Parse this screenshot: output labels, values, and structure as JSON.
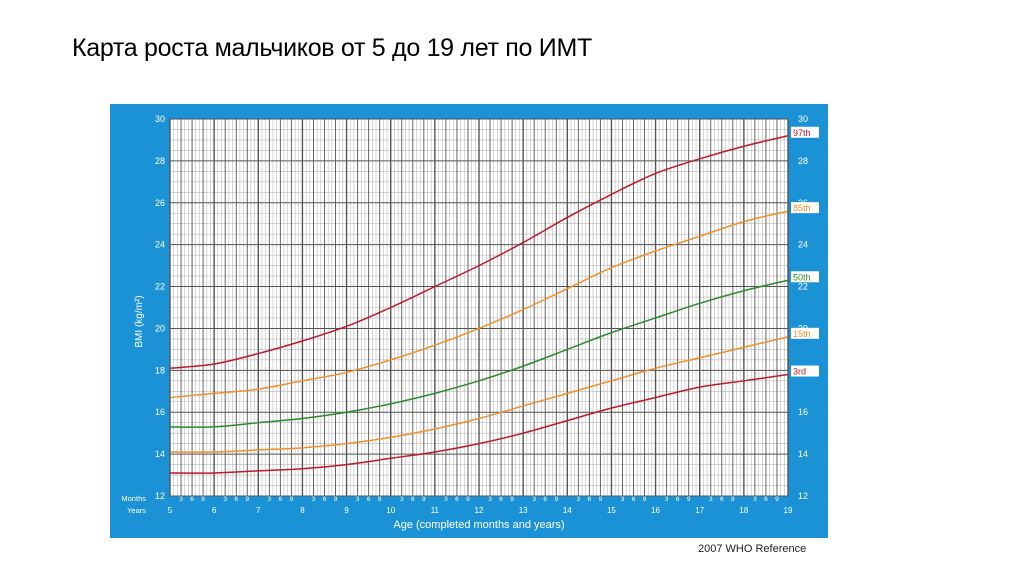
{
  "slide": {
    "title": "Карта роста мальчиков от 5 до 19 лет по ИМТ",
    "footer": "2007  WHO Reference"
  },
  "colors": {
    "frame": "#1b92d6",
    "plot_bg": "#ffffff",
    "grid_minor": "#b9b9b9",
    "grid_major": "#555555",
    "red": "#c0182c",
    "orange": "#f0902a",
    "green": "#2d8a2d"
  },
  "chart_data": {
    "type": "line",
    "title": "",
    "xlabel": "Age (completed months and years)",
    "ylabel": "BMI (kg/m²)",
    "xlim": [
      5,
      19
    ],
    "ylim": [
      12,
      30
    ],
    "y_ticks": [
      12,
      14,
      16,
      18,
      20,
      22,
      24,
      26,
      28,
      30
    ],
    "x_year_ticks": [
      5,
      6,
      7,
      8,
      9,
      10,
      11,
      12,
      13,
      14,
      15,
      16,
      17,
      18,
      19
    ],
    "month_ticks": [
      "3",
      "6",
      "9"
    ],
    "row_labels": {
      "months": "Months",
      "years": "Years"
    },
    "grid": true,
    "x": [
      5,
      6,
      7,
      8,
      9,
      10,
      11,
      12,
      13,
      14,
      15,
      16,
      17,
      18,
      19
    ],
    "series": [
      {
        "name": "97th",
        "color": "red",
        "values": [
          18.1,
          18.3,
          18.8,
          19.4,
          20.1,
          21.0,
          22.0,
          23.0,
          24.1,
          25.3,
          26.4,
          27.4,
          28.1,
          28.7,
          29.2
        ]
      },
      {
        "name": "85th",
        "color": "orange",
        "values": [
          16.7,
          16.9,
          17.1,
          17.5,
          17.9,
          18.5,
          19.2,
          20.0,
          20.9,
          21.9,
          22.9,
          23.7,
          24.4,
          25.1,
          25.6
        ]
      },
      {
        "name": "50th",
        "color": "green",
        "values": [
          15.3,
          15.3,
          15.5,
          15.7,
          16.0,
          16.4,
          16.9,
          17.5,
          18.2,
          19.0,
          19.8,
          20.5,
          21.2,
          21.8,
          22.3
        ]
      },
      {
        "name": "15th",
        "color": "orange",
        "values": [
          14.1,
          14.1,
          14.2,
          14.3,
          14.5,
          14.8,
          15.2,
          15.7,
          16.3,
          16.9,
          17.5,
          18.1,
          18.6,
          19.1,
          19.6
        ]
      },
      {
        "name": "3rd",
        "color": "red",
        "values": [
          13.1,
          13.1,
          13.2,
          13.3,
          13.5,
          13.8,
          14.1,
          14.5,
          15.0,
          15.6,
          16.2,
          16.7,
          17.2,
          17.5,
          17.8
        ]
      }
    ]
  }
}
